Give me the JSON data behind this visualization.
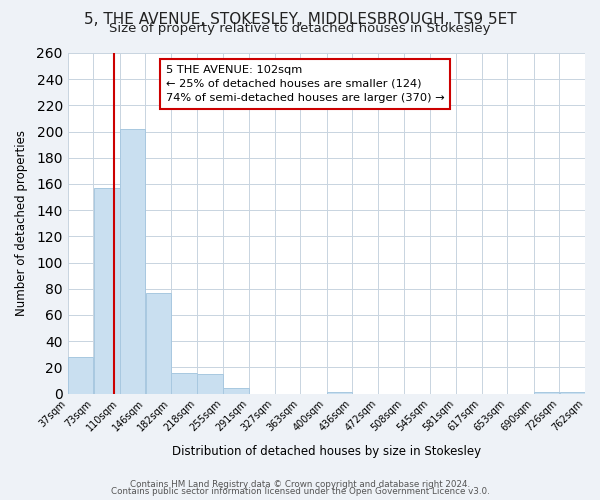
{
  "title1": "5, THE AVENUE, STOKESLEY, MIDDLESBROUGH, TS9 5ET",
  "title2": "Size of property relative to detached houses in Stokesley",
  "xlabel": "Distribution of detached houses by size in Stokesley",
  "ylabel": "Number of detached properties",
  "bar_edges": [
    37,
    73,
    110,
    146,
    182,
    218,
    255,
    291,
    327,
    363,
    400,
    436,
    472,
    508,
    545,
    581,
    617,
    653,
    690,
    726,
    762
  ],
  "bar_heights": [
    28,
    157,
    202,
    77,
    16,
    15,
    4,
    0,
    0,
    0,
    1,
    0,
    0,
    0,
    0,
    0,
    0,
    0,
    1,
    1
  ],
  "bar_color": "#c9dff0",
  "bar_edge_color": "#a8c8e0",
  "property_line_x": 102,
  "property_line_color": "#cc0000",
  "ylim": [
    0,
    260
  ],
  "yticks": [
    0,
    20,
    40,
    60,
    80,
    100,
    120,
    140,
    160,
    180,
    200,
    220,
    240,
    260
  ],
  "annotation_title": "5 THE AVENUE: 102sqm",
  "annotation_line1": "← 25% of detached houses are smaller (124)",
  "annotation_line2": "74% of semi-detached houses are larger (370) →",
  "annotation_box_color": "#cc0000",
  "footer1": "Contains HM Land Registry data © Crown copyright and database right 2024.",
  "footer2": "Contains public sector information licensed under the Open Government Licence v3.0.",
  "bg_color": "#eef2f7",
  "plot_bg_color": "#ffffff",
  "grid_color": "#c8d4e0",
  "title1_fontsize": 11,
  "title2_fontsize": 9.5
}
